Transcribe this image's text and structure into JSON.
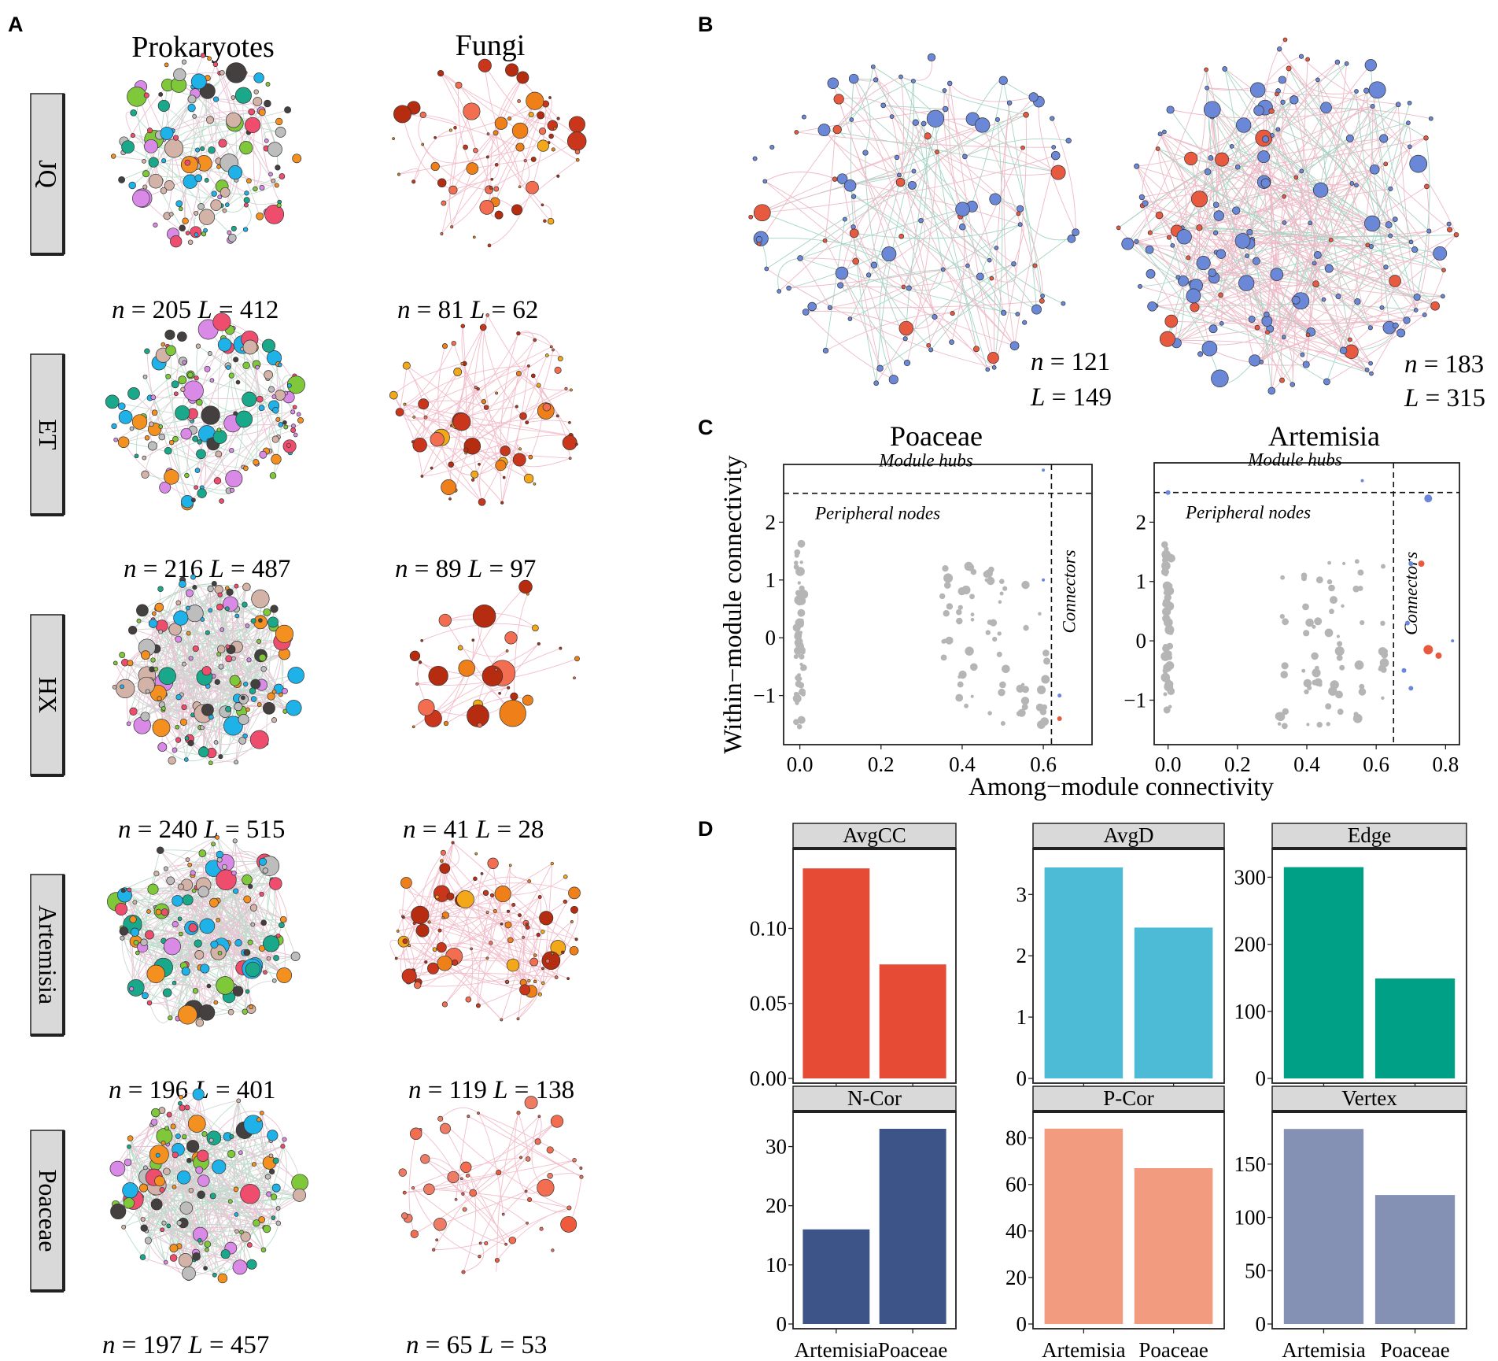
{
  "panels": {
    "A": "A",
    "B": "B",
    "C": "C",
    "D": "D"
  },
  "panelA": {
    "col_headers": [
      "Prokaryotes",
      "Fungi"
    ],
    "rows": [
      {
        "label": "JQ",
        "prok": {
          "n": "205",
          "L": "412"
        },
        "fungi": {
          "n": "81",
          "L": "62"
        }
      },
      {
        "label": "ET",
        "prok": {
          "n": "216",
          "L": "487"
        },
        "fungi": {
          "n": "89",
          "L": "97"
        }
      },
      {
        "label": "HX",
        "prok": {
          "n": "240",
          "L": "515"
        },
        "fungi": {
          "n": "41",
          "L": "28"
        }
      },
      {
        "label": "Artemisia",
        "prok": {
          "n": "196",
          "L": "401"
        },
        "fungi": {
          "n": "119",
          "L": "138"
        }
      },
      {
        "label": "Poaceae",
        "prok": {
          "n": "197",
          "L": "457"
        },
        "fungi": {
          "n": "65",
          "L": "53"
        }
      }
    ],
    "prok_colors": [
      "#d98ae6",
      "#7ec83a",
      "#1fb2e8",
      "#444040",
      "#f39020",
      "#d3b3a8",
      "#1aa88a",
      "#ef4d6e",
      "#bdbdbd"
    ],
    "fungi_colors": [
      "#b52c10",
      "#f36e50",
      "#ef7f18",
      "#f2a818",
      "#c9361b"
    ]
  },
  "panelB": {
    "networks": [
      {
        "n": "121",
        "L": "149"
      },
      {
        "n": "183",
        "L": "315"
      }
    ],
    "node_colors": {
      "prok": "#6a87d8",
      "fungi": "#e85a40"
    },
    "edge_colors": {
      "positive": "#e8a2b4",
      "negative": "#86c7b2"
    }
  },
  "panelC": {
    "titles": [
      "Poaceae",
      "Artemisia"
    ],
    "xlabel": "Among−module connectivity",
    "ylabel": "Within−module connectivity",
    "labels": {
      "hubs": "Module hubs",
      "peripheral": "Peripheral nodes",
      "connectors": "Connectors"
    },
    "poaceae": {
      "xlim": [
        -0.04,
        0.72
      ],
      "ylim": [
        -1.85,
        3.0
      ],
      "xticks": [
        {
          "v": 0.0,
          "t": "0.0"
        },
        {
          "v": 0.2,
          "t": "0.2"
        },
        {
          "v": 0.4,
          "t": "0.4"
        },
        {
          "v": 0.6,
          "t": "0.6"
        }
      ],
      "yticks": [
        {
          "v": -1,
          "t": "−1"
        },
        {
          "v": 0,
          "t": "0"
        },
        {
          "v": 1,
          "t": "1"
        },
        {
          "v": 2,
          "t": "2"
        }
      ],
      "thresholds": {
        "x": 0.62,
        "y": 2.5
      }
    },
    "artemisia": {
      "xlim": [
        -0.04,
        0.84
      ],
      "ylim": [
        -1.75,
        3.0
      ],
      "xticks": [
        {
          "v": 0.0,
          "t": "0.0"
        },
        {
          "v": 0.2,
          "t": "0.2"
        },
        {
          "v": 0.4,
          "t": "0.4"
        },
        {
          "v": 0.6,
          "t": "0.6"
        },
        {
          "v": 0.8,
          "t": "0.8"
        }
      ],
      "yticks": [
        {
          "v": -1,
          "t": "−1"
        },
        {
          "v": 0,
          "t": "0"
        },
        {
          "v": 1,
          "t": "1"
        },
        {
          "v": 2,
          "t": "2"
        }
      ],
      "thresholds": {
        "x": 0.65,
        "y": 2.5
      }
    }
  },
  "chart_data": [
    {
      "type": "bar",
      "title": "AvgCC",
      "categories": [
        "Artemisia",
        "Poaceae"
      ],
      "values": [
        0.14,
        0.076
      ],
      "ylim": [
        0,
        0.148
      ],
      "yticks": [
        "0.00",
        "0.05",
        "0.10"
      ],
      "color": "#e64b35"
    },
    {
      "type": "bar",
      "title": "AvgD",
      "categories": [
        "Artemisia",
        "Poaceae"
      ],
      "values": [
        3.44,
        2.46
      ],
      "ylim": [
        0,
        3.62
      ],
      "yticks": [
        "0",
        "1",
        "2",
        "3"
      ],
      "color": "#4dbbd5"
    },
    {
      "type": "bar",
      "title": "Edge",
      "categories": [
        "Artemisia",
        "Poaceae"
      ],
      "values": [
        315,
        149
      ],
      "ylim": [
        0,
        331
      ],
      "yticks": [
        "0",
        "100",
        "200",
        "300"
      ],
      "color": "#00a087"
    },
    {
      "type": "bar",
      "title": "N-Cor",
      "categories": [
        "Artemisia",
        "Poaceae"
      ],
      "values": [
        16,
        33
      ],
      "ylim": [
        0,
        34.6
      ],
      "yticks": [
        "0",
        "10",
        "20",
        "30"
      ],
      "color": "#3c5488"
    },
    {
      "type": "bar",
      "title": "P-Cor",
      "categories": [
        "Artemisia",
        "Poaceae"
      ],
      "values": [
        84,
        67
      ],
      "ylim": [
        0,
        88
      ],
      "yticks": [
        "0",
        "20",
        "40",
        "60",
        "80"
      ],
      "color": "#f39b7f"
    },
    {
      "type": "bar",
      "title": "Vertex",
      "categories": [
        "Artemisia",
        "Poaceae"
      ],
      "values": [
        183,
        121
      ],
      "ylim": [
        0,
        192
      ],
      "yticks": [
        "0",
        "50",
        "100",
        "150"
      ],
      "color": "#8491b4"
    }
  ]
}
